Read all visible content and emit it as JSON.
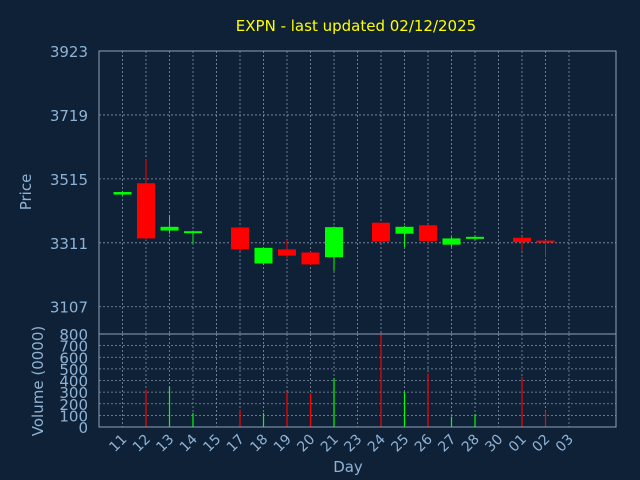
{
  "chart_data": {
    "type": "candlestick",
    "title": "EXPN - last updated 02/12/2025",
    "xlabel": "Day",
    "ylabel_price": "Price",
    "ylabel_volume": "Volume (0000)",
    "price_ticks": [
      3107,
      3311,
      3515,
      3719,
      3923
    ],
    "price_range": [
      3020,
      3923
    ],
    "volume_ticks": [
      0,
      100,
      200,
      300,
      400,
      500,
      600,
      700,
      800
    ],
    "volume_range": [
      0,
      800
    ],
    "x_ticks": [
      "11",
      "12",
      "13",
      "14",
      "15",
      "17",
      "18",
      "19",
      "20",
      "21",
      "23",
      "24",
      "25",
      "26",
      "27",
      "28",
      "30",
      "01",
      "02",
      "03"
    ],
    "grid": true,
    "colors": {
      "up": "#00ff00",
      "down": "#ff0000",
      "title": "#ffff00",
      "axis_text": "#8fb3d6",
      "background": "#0f2136"
    },
    "candles": [
      {
        "day": "11",
        "open": 3465,
        "high": 3475,
        "low": 3463,
        "close": 3473
      },
      {
        "day": "12",
        "open": 3501,
        "high": 3578,
        "low": 3320,
        "close": 3325
      },
      {
        "day": "13",
        "open": 3350,
        "high": 3400,
        "low": 3340,
        "close": 3362
      },
      {
        "day": "14",
        "open": 3344,
        "high": 3350,
        "low": 3310,
        "close": 3348
      },
      {
        "day": "17",
        "open": 3360,
        "high": 3362,
        "low": 3285,
        "close": 3290
      },
      {
        "day": "18",
        "open": 3245,
        "high": 3296,
        "low": 3240,
        "close": 3295
      },
      {
        "day": "19",
        "open": 3290,
        "high": 3320,
        "low": 3262,
        "close": 3270
      },
      {
        "day": "20",
        "open": 3280,
        "high": 3282,
        "low": 3240,
        "close": 3242
      },
      {
        "day": "21",
        "open": 3265,
        "high": 3363,
        "low": 3222,
        "close": 3361
      },
      {
        "day": "24",
        "open": 3375,
        "high": 3375,
        "low": 3310,
        "close": 3315
      },
      {
        "day": "25",
        "open": 3340,
        "high": 3365,
        "low": 3297,
        "close": 3362
      },
      {
        "day": "26",
        "open": 3367,
        "high": 3369,
        "low": 3307,
        "close": 3317
      },
      {
        "day": "27",
        "open": 3305,
        "high": 3330,
        "low": 3297,
        "close": 3325
      },
      {
        "day": "28",
        "open": 3325,
        "high": 3335,
        "low": 3320,
        "close": 3330
      },
      {
        "day": "01",
        "open": 3327,
        "high": 3330,
        "low": 3287,
        "close": 3313
      },
      {
        "day": "02",
        "open": 3318,
        "high": 3320,
        "low": 3265,
        "close": 3312
      }
    ],
    "volume": [
      {
        "day": "11",
        "value": 0,
        "up": true
      },
      {
        "day": "12",
        "value": 320,
        "up": false
      },
      {
        "day": "13",
        "value": 350,
        "up": true
      },
      {
        "day": "14",
        "value": 120,
        "up": true
      },
      {
        "day": "17",
        "value": 150,
        "up": false
      },
      {
        "day": "18",
        "value": 120,
        "up": true
      },
      {
        "day": "19",
        "value": 300,
        "up": false
      },
      {
        "day": "20",
        "value": 290,
        "up": false
      },
      {
        "day": "21",
        "value": 420,
        "up": true
      },
      {
        "day": "24",
        "value": 800,
        "up": false
      },
      {
        "day": "25",
        "value": 300,
        "up": true
      },
      {
        "day": "26",
        "value": 460,
        "up": false
      },
      {
        "day": "27",
        "value": 90,
        "up": true
      },
      {
        "day": "28",
        "value": 110,
        "up": true
      },
      {
        "day": "01",
        "value": 430,
        "up": false
      },
      {
        "day": "02",
        "value": 140,
        "up": false
      }
    ]
  }
}
